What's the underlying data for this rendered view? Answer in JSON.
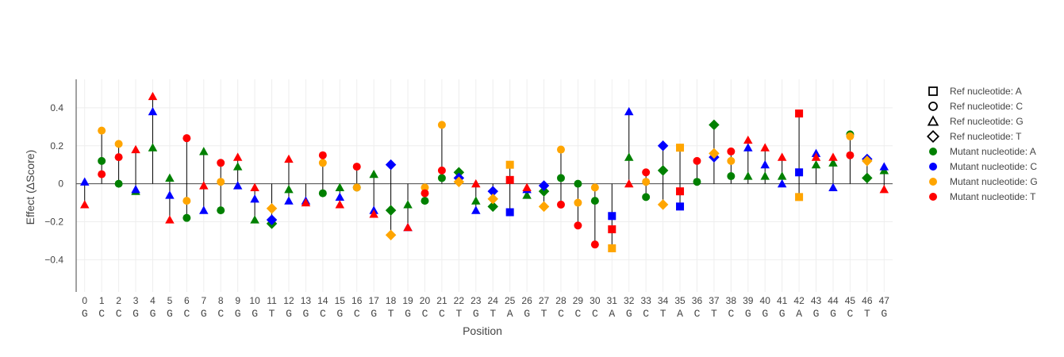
{
  "chart_data": {
    "type": "scatter",
    "title": "",
    "xlabel": "Position",
    "ylabel": "Effect (ΔScore)",
    "xlim": [
      -0.5,
      47.5
    ],
    "ylim": [
      -0.57,
      0.55
    ],
    "yticks": [
      -0.4,
      -0.2,
      0,
      0.2,
      0.4
    ],
    "ytick_labels": [
      "−0.4",
      "−0.2",
      "0",
      "0.2",
      "0.4"
    ],
    "grid": true,
    "legend_position": "right",
    "sequence": [
      "G",
      "C",
      "C",
      "G",
      "G",
      "G",
      "C",
      "G",
      "C",
      "G",
      "G",
      "T",
      "G",
      "G",
      "C",
      "G",
      "C",
      "G",
      "T",
      "G",
      "C",
      "C",
      "T",
      "G",
      "T",
      "A",
      "G",
      "T",
      "C",
      "C",
      "C",
      "A",
      "G",
      "C",
      "T",
      "A",
      "C",
      "T",
      "C",
      "G",
      "G",
      "G",
      "A",
      "G",
      "G",
      "C",
      "T",
      "G"
    ],
    "positions": [
      0,
      1,
      2,
      3,
      4,
      5,
      6,
      7,
      8,
      9,
      10,
      11,
      12,
      13,
      14,
      15,
      16,
      17,
      18,
      19,
      20,
      21,
      22,
      23,
      24,
      25,
      26,
      27,
      28,
      29,
      30,
      31,
      32,
      33,
      34,
      35,
      36,
      37,
      38,
      39,
      40,
      41,
      42,
      43,
      44,
      45,
      46,
      47
    ],
    "ref_markers": {
      "A": "square",
      "C": "circle",
      "G": "triangle-up",
      "T": "diamond"
    },
    "series": [
      {
        "name": "Mutant nucleotide: A",
        "color": "#008000",
        "values": [
          null,
          0.12,
          0.0,
          -0.04,
          0.19,
          0.03,
          -0.18,
          0.17,
          -0.14,
          0.09,
          -0.19,
          -0.21,
          -0.03,
          null,
          -0.05,
          -0.02,
          -0.02,
          0.05,
          -0.14,
          -0.11,
          -0.09,
          0.03,
          0.06,
          -0.09,
          -0.12,
          null,
          -0.06,
          -0.04,
          0.03,
          0.0,
          -0.09,
          null,
          0.14,
          -0.07,
          0.07,
          null,
          0.01,
          0.31,
          0.04,
          0.04,
          0.04,
          0.04,
          null,
          0.1,
          0.11,
          0.26,
          0.03,
          0.07
        ]
      },
      {
        "name": "Mutant nucleotide: C",
        "color": "#0000ff",
        "values": [
          0.01,
          null,
          null,
          -0.03,
          0.38,
          -0.06,
          null,
          -0.14,
          null,
          -0.01,
          -0.08,
          -0.19,
          -0.09,
          -0.09,
          null,
          -0.07,
          null,
          -0.14,
          0.1,
          -0.23,
          null,
          null,
          0.03,
          -0.14,
          -0.04,
          -0.15,
          -0.03,
          -0.01,
          null,
          null,
          null,
          -0.17,
          0.38,
          null,
          0.2,
          -0.12,
          null,
          0.14,
          null,
          0.19,
          0.1,
          0.0,
          0.06,
          0.16,
          -0.02,
          null,
          0.13,
          0.09
        ]
      },
      {
        "name": "Mutant nucleotide: G",
        "color": "#ffa500",
        "values": [
          null,
          0.28,
          0.21,
          null,
          null,
          null,
          -0.09,
          null,
          0.01,
          null,
          null,
          -0.13,
          null,
          null,
          0.11,
          null,
          -0.02,
          null,
          -0.27,
          null,
          -0.02,
          0.31,
          0.01,
          null,
          -0.08,
          0.1,
          null,
          -0.12,
          0.18,
          -0.1,
          -0.02,
          -0.34,
          null,
          0.01,
          -0.11,
          0.19,
          null,
          0.16,
          0.12,
          null,
          null,
          null,
          -0.07,
          null,
          null,
          0.25,
          0.12,
          null
        ]
      },
      {
        "name": "Mutant nucleotide: T",
        "color": "#ff0000",
        "values": [
          -0.11,
          0.05,
          0.14,
          0.18,
          0.46,
          -0.19,
          0.24,
          -0.01,
          0.11,
          0.14,
          -0.02,
          null,
          0.13,
          -0.1,
          0.15,
          -0.11,
          0.09,
          -0.16,
          null,
          -0.23,
          -0.05,
          0.07,
          null,
          0.0,
          null,
          0.02,
          -0.02,
          null,
          -0.11,
          -0.22,
          -0.32,
          -0.24,
          0.0,
          0.06,
          null,
          -0.04,
          0.12,
          null,
          0.17,
          0.23,
          0.19,
          0.14,
          0.37,
          0.14,
          0.14,
          0.15,
          null,
          -0.03
        ]
      }
    ],
    "legend": [
      {
        "label": "Ref nucleotide: A",
        "marker": "square",
        "kind": "ref"
      },
      {
        "label": "Ref nucleotide: C",
        "marker": "circle",
        "kind": "ref"
      },
      {
        "label": "Ref nucleotide: G",
        "marker": "triangle-up",
        "kind": "ref"
      },
      {
        "label": "Ref nucleotide: T",
        "marker": "diamond",
        "kind": "ref"
      },
      {
        "label": "Mutant nucleotide: A",
        "color": "#008000",
        "kind": "mutant"
      },
      {
        "label": "Mutant nucleotide: C",
        "color": "#0000ff",
        "kind": "mutant"
      },
      {
        "label": "Mutant nucleotide: G",
        "color": "#ffa500",
        "kind": "mutant"
      },
      {
        "label": "Mutant nucleotide: T",
        "color": "#ff0000",
        "kind": "mutant"
      }
    ]
  }
}
